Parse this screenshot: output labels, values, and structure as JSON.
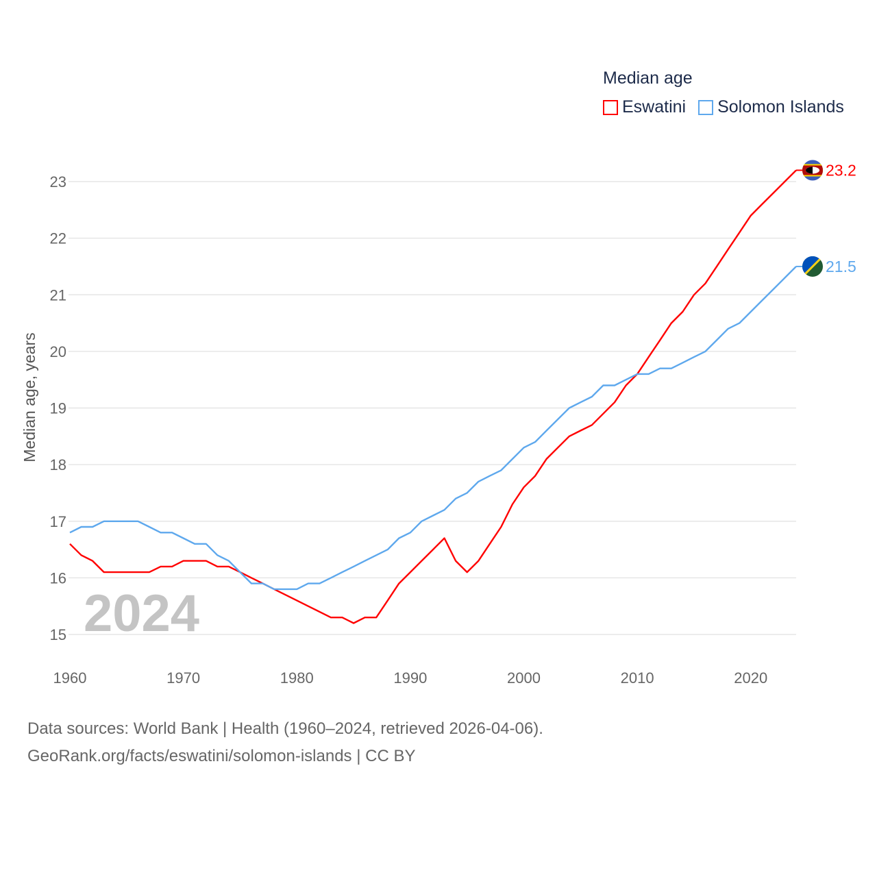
{
  "chart_data": {
    "type": "line",
    "title": "",
    "ylabel": "Median age, years",
    "xlabel": "",
    "xlim": [
      1960,
      2024
    ],
    "ylim": [
      15,
      23
    ],
    "x_ticks": [
      1960,
      1970,
      1980,
      1990,
      2000,
      2010,
      2020
    ],
    "y_ticks": [
      15,
      16,
      17,
      18,
      19,
      20,
      21,
      22,
      23
    ],
    "grid": true,
    "watermark_year": "2024",
    "legend": {
      "title": "Median age",
      "placement": "top-right"
    },
    "x": [
      1960,
      1961,
      1962,
      1963,
      1964,
      1965,
      1966,
      1967,
      1968,
      1969,
      1970,
      1971,
      1972,
      1973,
      1974,
      1975,
      1976,
      1977,
      1978,
      1979,
      1980,
      1981,
      1982,
      1983,
      1984,
      1985,
      1986,
      1987,
      1988,
      1989,
      1990,
      1991,
      1992,
      1993,
      1994,
      1995,
      1996,
      1997,
      1998,
      1999,
      2000,
      2001,
      2002,
      2003,
      2004,
      2005,
      2006,
      2007,
      2008,
      2009,
      2010,
      2011,
      2012,
      2013,
      2014,
      2015,
      2016,
      2017,
      2018,
      2019,
      2020,
      2021,
      2022,
      2023,
      2024
    ],
    "series": [
      {
        "name": "Eswatini",
        "color": "#ff0000",
        "end_label": "23.2",
        "values": [
          16.6,
          16.4,
          16.3,
          16.1,
          16.1,
          16.1,
          16.1,
          16.1,
          16.2,
          16.2,
          16.3,
          16.3,
          16.3,
          16.2,
          16.2,
          16.1,
          16.0,
          15.9,
          15.8,
          15.7,
          15.6,
          15.5,
          15.4,
          15.3,
          15.3,
          15.2,
          15.3,
          15.3,
          15.6,
          15.9,
          16.1,
          16.3,
          16.5,
          16.7,
          16.3,
          16.1,
          16.3,
          16.6,
          16.9,
          17.3,
          17.6,
          17.8,
          18.1,
          18.3,
          18.5,
          18.6,
          18.7,
          18.9,
          19.1,
          19.4,
          19.6,
          19.9,
          20.2,
          20.5,
          20.7,
          21.0,
          21.2,
          21.5,
          21.8,
          22.1,
          22.4,
          22.6,
          22.8,
          23.0,
          23.2
        ]
      },
      {
        "name": "Solomon Islands",
        "color": "#5ea8ed",
        "end_label": "21.5",
        "values": [
          16.8,
          16.9,
          16.9,
          17.0,
          17.0,
          17.0,
          17.0,
          16.9,
          16.8,
          16.8,
          16.7,
          16.6,
          16.6,
          16.4,
          16.3,
          16.1,
          15.9,
          15.9,
          15.8,
          15.8,
          15.8,
          15.9,
          15.9,
          16.0,
          16.1,
          16.2,
          16.3,
          16.4,
          16.5,
          16.7,
          16.8,
          17.0,
          17.1,
          17.2,
          17.4,
          17.5,
          17.7,
          17.8,
          17.9,
          18.1,
          18.3,
          18.4,
          18.6,
          18.8,
          19.0,
          19.1,
          19.2,
          19.4,
          19.4,
          19.5,
          19.6,
          19.6,
          19.7,
          19.7,
          19.8,
          19.9,
          20.0,
          20.2,
          20.4,
          20.5,
          20.7,
          20.9,
          21.1,
          21.3,
          21.5
        ]
      }
    ]
  },
  "footer": {
    "line1": "Data sources: World Bank | Health (1960–2024, retrieved 2026-04-06).",
    "line2": "GeoRank.org/facts/eswatini/solomon-islands | CC BY"
  }
}
